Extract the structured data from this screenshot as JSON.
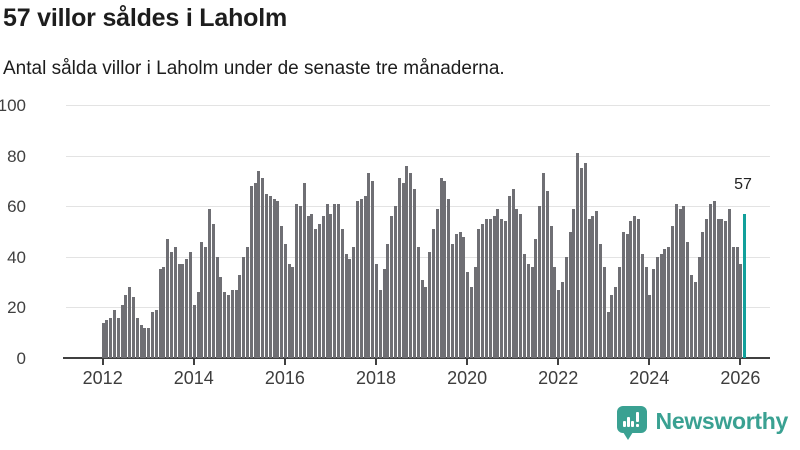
{
  "header": {
    "title": "57 villor såldes i Laholm",
    "subtitle": "Antal sålda villor i Laholm under de senaste tre månaderna."
  },
  "chart_data": {
    "type": "bar",
    "title": "57 villor såldes i Laholm",
    "subtitle": "Antal sålda villor i Laholm under de senaste tre månaderna.",
    "xlabel": "",
    "ylabel": "",
    "ylim": [
      0,
      100
    ],
    "y_ticks": [
      0,
      20,
      40,
      60,
      80,
      100
    ],
    "x_tick_years": [
      2012,
      2014,
      2016,
      2018,
      2020,
      2022,
      2024,
      2026
    ],
    "grid": "horizontal",
    "frequency": "monthly",
    "start_month": "2012-01",
    "end_month": "2026-02",
    "values": [
      14,
      15,
      16,
      19,
      16,
      21,
      25,
      28,
      24,
      16,
      13,
      12,
      12,
      18,
      19,
      35,
      36,
      47,
      42,
      44,
      37,
      37,
      39,
      42,
      21,
      26,
      46,
      44,
      59,
      53,
      40,
      32,
      26,
      25,
      27,
      27,
      33,
      40,
      44,
      68,
      69,
      74,
      71,
      65,
      64,
      63,
      62,
      52,
      45,
      37,
      36,
      61,
      60,
      69,
      56,
      57,
      51,
      53,
      56,
      61,
      57,
      61,
      61,
      51,
      41,
      39,
      44,
      62,
      63,
      64,
      73,
      70,
      37,
      27,
      35,
      45,
      56,
      60,
      71,
      69,
      76,
      73,
      67,
      44,
      31,
      28,
      42,
      51,
      59,
      71,
      70,
      63,
      45,
      49,
      50,
      48,
      34,
      28,
      36,
      51,
      53,
      55,
      55,
      56,
      59,
      55,
      54,
      64,
      67,
      59,
      57,
      41,
      37,
      36,
      47,
      60,
      73,
      66,
      52,
      36,
      27,
      30,
      40,
      50,
      59,
      81,
      75,
      77,
      55,
      56,
      58,
      45,
      36,
      18,
      25,
      28,
      36,
      50,
      49,
      54,
      56,
      55,
      41,
      36,
      25,
      35,
      40,
      41,
      43,
      44,
      52,
      61,
      59,
      60,
      46,
      33,
      30,
      40,
      50,
      55,
      61,
      62,
      55,
      55,
      54,
      59,
      44,
      44,
      37,
      57
    ],
    "highlight_last": {
      "value": 57,
      "label": "57"
    },
    "colors": {
      "bar": "#6f6f74",
      "highlight": "#12a09b",
      "grid": "#e3e3e3",
      "axis": "#404040"
    }
  },
  "branding": {
    "label": "Newsworthy",
    "color": "#3aa192",
    "icon": "newsworthy-logo-icon"
  }
}
